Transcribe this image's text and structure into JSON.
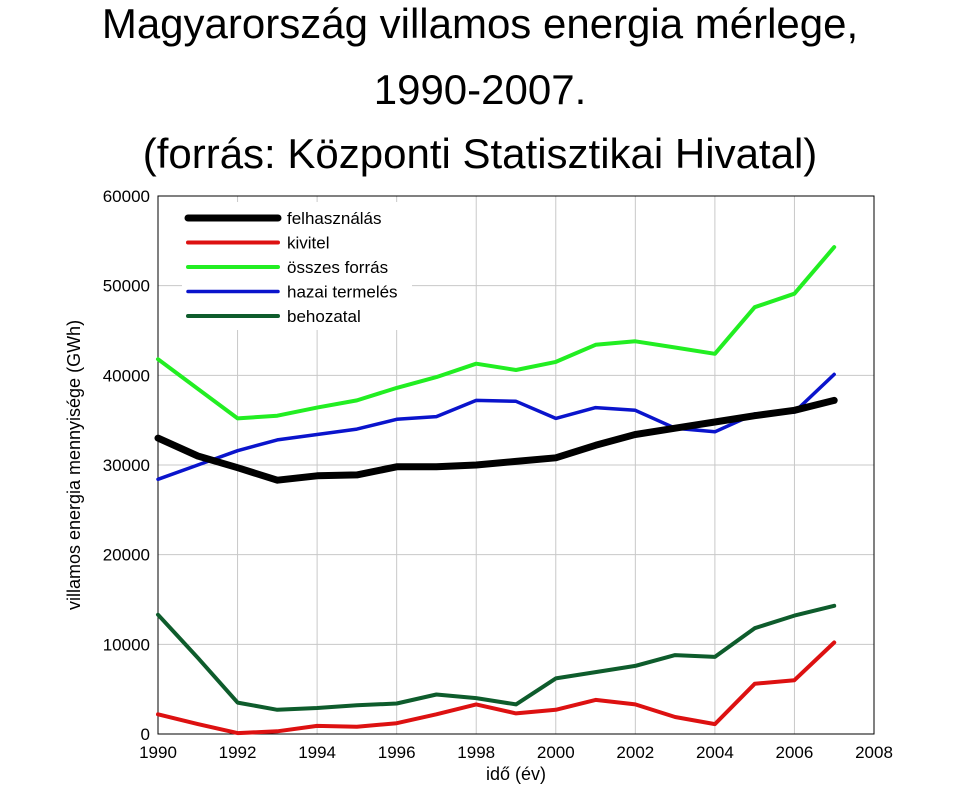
{
  "title_lines": [
    "Magyarország villamos energia mérlege,",
    "1990-2007.",
    "(forrás: Központi Statisztikai Hivatal)"
  ],
  "chart_data": {
    "type": "line",
    "xlabel": "idő (év)",
    "ylabel": "villamos energia mennyisége (GWh)",
    "xlim": [
      1990,
      2008
    ],
    "ylim": [
      0,
      60000
    ],
    "x_ticks": [
      1990,
      1992,
      1994,
      1996,
      1998,
      2000,
      2002,
      2004,
      2006,
      2008
    ],
    "y_ticks": [
      0,
      10000,
      20000,
      30000,
      40000,
      50000,
      60000
    ],
    "grid": true,
    "legend_position": "top-left",
    "x": [
      1990,
      1991,
      1992,
      1993,
      1994,
      1995,
      1996,
      1997,
      1998,
      1999,
      2000,
      2001,
      2002,
      2003,
      2004,
      2005,
      2006,
      2007
    ],
    "series": [
      {
        "name": "felhasználás",
        "color": "#000000",
        "values": [
          33000,
          31000,
          29700,
          28300,
          28800,
          28900,
          29800,
          29800,
          30000,
          30400,
          30800,
          32200,
          33400,
          34100,
          34800,
          35500,
          36100,
          37200
        ]
      },
      {
        "name": "kivitel",
        "color": "#dd1111",
        "values": [
          2200,
          1100,
          100,
          300,
          900,
          800,
          1200,
          2200,
          3300,
          2300,
          2700,
          3800,
          3300,
          1900,
          1100,
          5600,
          6000,
          10200
        ]
      },
      {
        "name": "összes forrás",
        "color": "#22ee22",
        "values": [
          41800,
          38500,
          35200,
          35500,
          36400,
          37200,
          38600,
          39800,
          41300,
          40600,
          41500,
          43400,
          43800,
          43100,
          42400,
          47600,
          49100,
          54300
        ]
      },
      {
        "name": "hazai termelés",
        "color": "#0a14cc",
        "values": [
          28400,
          30000,
          31600,
          32800,
          33400,
          34000,
          35100,
          35400,
          37200,
          37100,
          35200,
          36400,
          36100,
          34100,
          33700,
          35700,
          35900,
          40100
        ]
      },
      {
        "name": "behozatal",
        "color": "#0e5c2c",
        "values": [
          13300,
          8500,
          3500,
          2700,
          2900,
          3200,
          3400,
          4400,
          4000,
          3300,
          6200,
          6900,
          7600,
          8800,
          8600,
          11800,
          13200,
          14300
        ]
      }
    ]
  }
}
